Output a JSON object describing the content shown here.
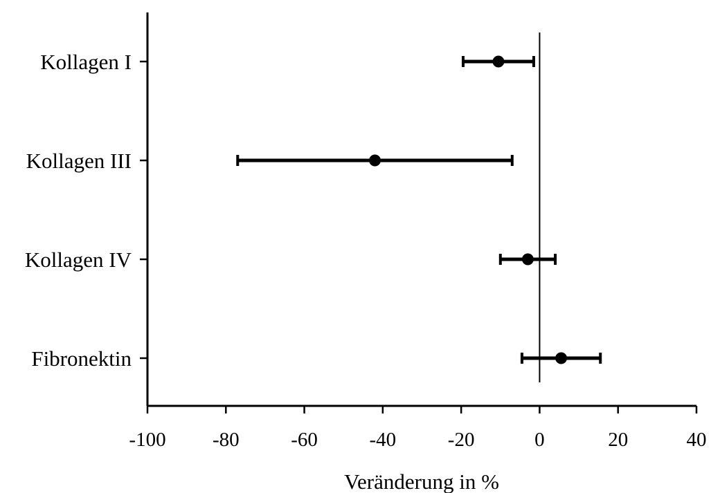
{
  "chart_data": {
    "type": "forest",
    "title": "",
    "xlabel": "Veränderung in %",
    "ylabel": "",
    "xlim": [
      -100,
      40
    ],
    "xticks": [
      -100,
      -80,
      -60,
      -40,
      -20,
      0,
      20,
      40
    ],
    "xtick_labels": [
      "-100",
      "-80",
      "-60",
      "-40",
      "-20",
      "0",
      "20",
      "40"
    ],
    "reference_line": 0,
    "grid": false,
    "legend": "none",
    "categories": [
      "Kollagen I",
      "Kollagen III",
      "Kollagen IV",
      "Fibronektin"
    ],
    "points": [
      {
        "label": "Kollagen I",
        "estimate": -10.5,
        "lower": -19.5,
        "upper": -1.5
      },
      {
        "label": "Kollagen III",
        "estimate": -42,
        "lower": -77,
        "upper": -7
      },
      {
        "label": "Kollagen IV",
        "estimate": -3,
        "lower": -10,
        "upper": 4
      },
      {
        "label": "Fibronektin",
        "estimate": 5.5,
        "lower": -4.5,
        "upper": 15.5
      }
    ],
    "colors": {
      "marker": "#000000",
      "line": "#000000",
      "text": "#000000"
    }
  }
}
